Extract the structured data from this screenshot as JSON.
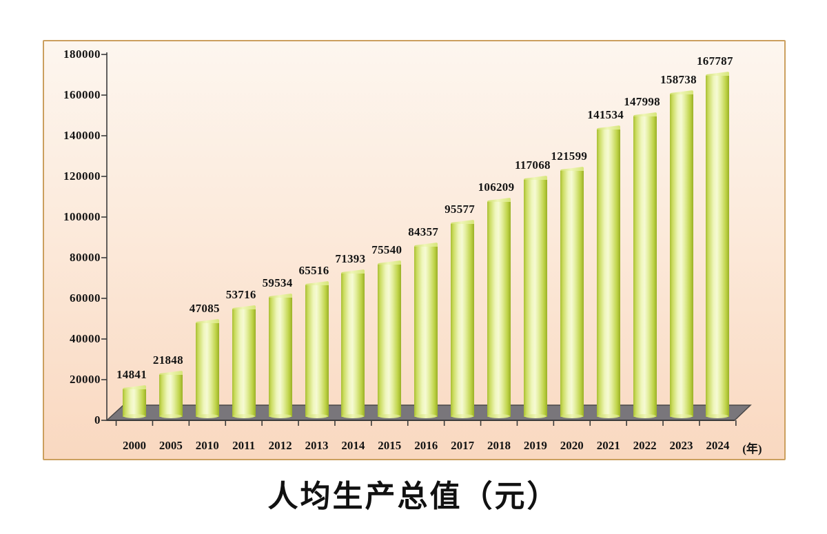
{
  "chart": {
    "panel_border_color": "#cb9f5e",
    "panel_bg_top": "#fdf6ef",
    "panel_bg_bottom": "#f9d8c0",
    "floor_color": "#79767b",
    "floor_edge_color": "#4a4848",
    "axis_color": "#3a3a3a",
    "bar_edge_color": "#a8be32",
    "bar_highlight_color": "#f6fad4",
    "label_color": "#141414"
  },
  "chart_data": {
    "type": "bar",
    "bar_style": "3d-cylinder",
    "title": "人均生产总值（元）",
    "xlabel": "(年)",
    "ylabel": "",
    "categories": [
      "2000",
      "2005",
      "2010",
      "2011",
      "2012",
      "2013",
      "2014",
      "2015",
      "2016",
      "2017",
      "2018",
      "2019",
      "2020",
      "2021",
      "2022",
      "2023",
      "2024"
    ],
    "values": [
      14841,
      21848,
      47085,
      53716,
      59534,
      65516,
      71393,
      75540,
      84357,
      95577,
      106209,
      117068,
      121599,
      141534,
      147998,
      158738,
      167787
    ],
    "ylim": [
      0,
      180000
    ],
    "ytick_step": 20000,
    "ytick_labels": [
      "0",
      "20000",
      "40000",
      "60000",
      "80000",
      "100000",
      "120000",
      "140000",
      "160000",
      "180000"
    ],
    "grid": false,
    "legend": "none",
    "data_labels": true
  }
}
